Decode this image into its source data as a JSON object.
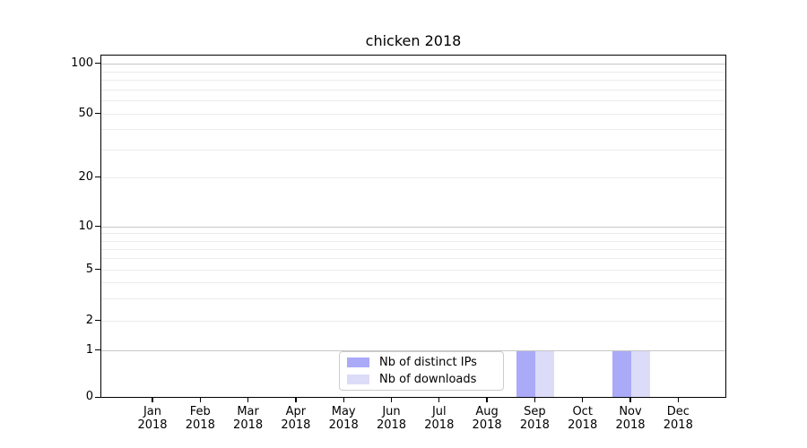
{
  "chart_data": {
    "type": "bar",
    "title": "chicken 2018",
    "categories": [
      {
        "month": "Jan",
        "year": "2018"
      },
      {
        "month": "Feb",
        "year": "2018"
      },
      {
        "month": "Mar",
        "year": "2018"
      },
      {
        "month": "Apr",
        "year": "2018"
      },
      {
        "month": "May",
        "year": "2018"
      },
      {
        "month": "Jun",
        "year": "2018"
      },
      {
        "month": "Jul",
        "year": "2018"
      },
      {
        "month": "Aug",
        "year": "2018"
      },
      {
        "month": "Sep",
        "year": "2018"
      },
      {
        "month": "Oct",
        "year": "2018"
      },
      {
        "month": "Nov",
        "year": "2018"
      },
      {
        "month": "Dec",
        "year": "2018"
      }
    ],
    "series": [
      {
        "name": "Nb of distinct IPs",
        "color": "#aaaaf8",
        "values": [
          0,
          0,
          0,
          0,
          0,
          0,
          0,
          0,
          1,
          0,
          1,
          0
        ]
      },
      {
        "name": "Nb of downloads",
        "color": "#dcdcf8",
        "values": [
          0,
          0,
          0,
          0,
          0,
          0,
          0,
          0,
          1,
          0,
          1,
          0
        ]
      }
    ],
    "y_axis": {
      "scale": "symlog",
      "tick_values": [
        0,
        1,
        2,
        5,
        10,
        20,
        50,
        100
      ],
      "tick_labels": [
        "0",
        "1",
        "2",
        "5",
        "10",
        "20",
        "50",
        "100"
      ],
      "major_values": [
        1,
        10,
        100
      ],
      "minor_unlabeled_values": [
        3,
        4,
        6,
        7,
        8,
        9,
        30,
        40,
        60,
        70,
        80,
        90
      ],
      "ylim_bottom": 0
    },
    "xlabel": "",
    "ylabel": "",
    "grid": {
      "horizontal": true,
      "vertical": false,
      "major_color": "#c6c6c6",
      "minor_color": "#ebebeb"
    },
    "legend": {
      "position": "lower-center inside plot",
      "items": [
        {
          "label": "Nb of distinct IPs",
          "color": "#aaaaf8"
        },
        {
          "label": "Nb of downloads",
          "color": "#dcdcf8"
        }
      ]
    }
  }
}
